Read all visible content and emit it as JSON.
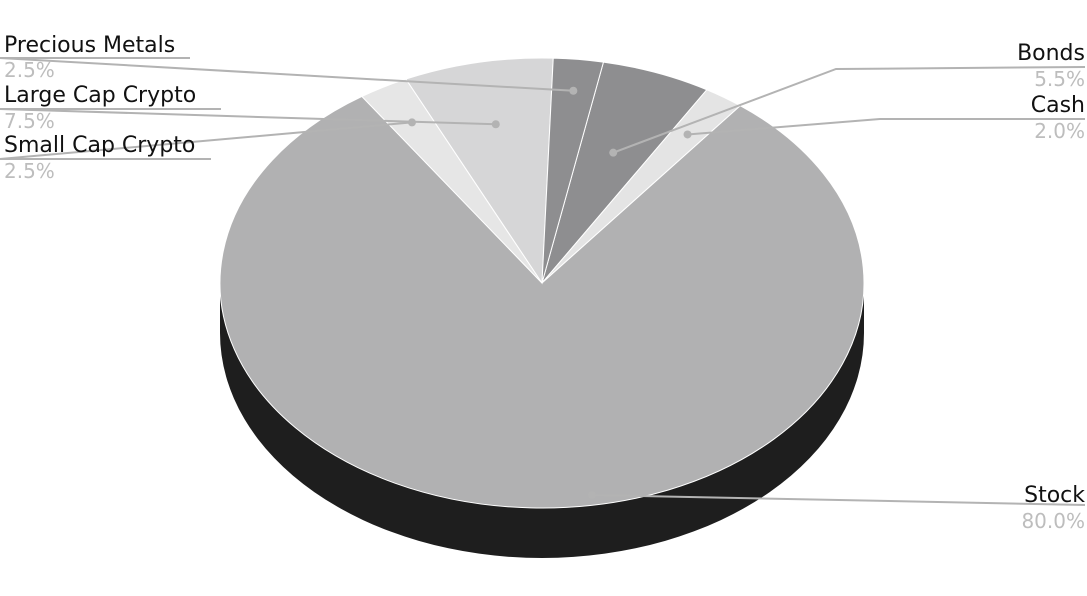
{
  "chart_data": {
    "type": "pie",
    "title": "",
    "slices": [
      {
        "label": "Bonds",
        "value": 5.5,
        "value_label": "5.5%",
        "color": "#8e8e90"
      },
      {
        "label": "Cash",
        "value": 2.0,
        "value_label": "2.0%",
        "color": "#e4e4e4"
      },
      {
        "label": "Stock",
        "value": 80.0,
        "value_label": "80.0%",
        "color": "#b1b1b2"
      },
      {
        "label": "Small Cap Crypto",
        "value": 2.5,
        "value_label": "2.5%",
        "color": "#e6e6e6"
      },
      {
        "label": "Large Cap Crypto",
        "value": 7.5,
        "value_label": "7.5%",
        "color": "#d6d6d7"
      },
      {
        "label": "Precious Metals",
        "value": 2.5,
        "value_label": "2.5%",
        "color": "#8e8e90"
      }
    ],
    "side_color": "#1e1e1e",
    "leader_color": "#b3b3b3",
    "legend": "none",
    "style": "3d"
  }
}
